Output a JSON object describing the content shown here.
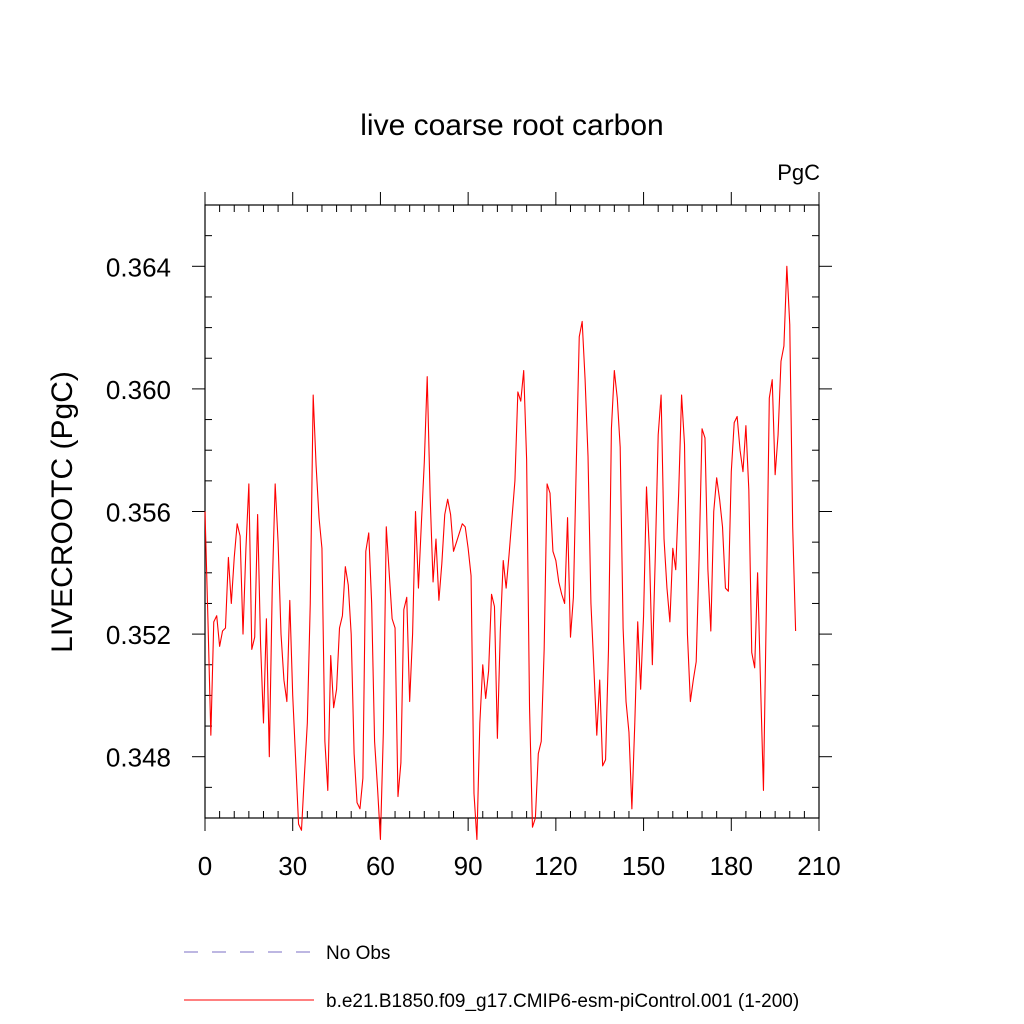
{
  "chart_data": {
    "type": "line",
    "title": "live coarse root carbon",
    "units_label": "PgC",
    "ylabel": "LIVECROOTC  (PgC)",
    "xlabel": "",
    "xlim": [
      0,
      210
    ],
    "ylim": [
      0.346,
      0.366
    ],
    "x_ticks": [
      0,
      30,
      60,
      90,
      120,
      150,
      180,
      210
    ],
    "x_tick_labels": [
      "0",
      "30",
      "60",
      "90",
      "120",
      "150",
      "180",
      "210"
    ],
    "x_minor_step": 5,
    "y_ticks": [
      0.348,
      0.352,
      0.356,
      0.36,
      0.364
    ],
    "y_tick_labels": [
      "0.348",
      "0.352",
      "0.356",
      "0.360",
      "0.364"
    ],
    "y_minor_step": 0.001,
    "grid": false,
    "series": [
      {
        "name": "b.e21.B1850.f09_g17.CMIP6-esm-piControl.001 (1-200)",
        "color": "#ff0000",
        "style": "solid",
        "x_start": 0,
        "x_step": 1,
        "values": [
          0.356,
          0.3525,
          0.3487,
          0.3524,
          0.3526,
          0.3516,
          0.3521,
          0.3522,
          0.3545,
          0.353,
          0.3545,
          0.3556,
          0.3552,
          0.352,
          0.3548,
          0.3569,
          0.3515,
          0.3519,
          0.3559,
          0.3517,
          0.3491,
          0.3525,
          0.348,
          0.3535,
          0.3569,
          0.355,
          0.352,
          0.3505,
          0.3498,
          0.3531,
          0.35,
          0.3479,
          0.3458,
          0.3456,
          0.3474,
          0.3491,
          0.353,
          0.3598,
          0.3575,
          0.3558,
          0.3548,
          0.3485,
          0.3469,
          0.3513,
          0.3496,
          0.3502,
          0.3522,
          0.3526,
          0.3542,
          0.3536,
          0.352,
          0.3481,
          0.3465,
          0.3463,
          0.3473,
          0.3547,
          0.3553,
          0.353,
          0.3485,
          0.347,
          0.3453,
          0.3488,
          0.3555,
          0.354,
          0.3525,
          0.3522,
          0.3467,
          0.3478,
          0.3528,
          0.3532,
          0.3498,
          0.352,
          0.356,
          0.3535,
          0.3556,
          0.3576,
          0.3604,
          0.3565,
          0.3537,
          0.3551,
          0.3531,
          0.3543,
          0.3559,
          0.3564,
          0.3559,
          0.3547,
          0.355,
          0.3553,
          0.3556,
          0.3555,
          0.3548,
          0.3539,
          0.3468,
          0.3453,
          0.3491,
          0.351,
          0.3499,
          0.3508,
          0.3533,
          0.3529,
          0.3486,
          0.3521,
          0.3544,
          0.3535,
          0.3546,
          0.3558,
          0.357,
          0.3599,
          0.3596,
          0.3606,
          0.3577,
          0.3496,
          0.3457,
          0.346,
          0.3481,
          0.3485,
          0.3515,
          0.3569,
          0.3566,
          0.3547,
          0.3544,
          0.3537,
          0.3533,
          0.353,
          0.3558,
          0.3519,
          0.3532,
          0.3576,
          0.3617,
          0.3622,
          0.3603,
          0.3578,
          0.353,
          0.3509,
          0.3487,
          0.3505,
          0.3477,
          0.3479,
          0.3515,
          0.3587,
          0.3606,
          0.3597,
          0.3581,
          0.3522,
          0.3498,
          0.3488,
          0.3463,
          0.3491,
          0.3524,
          0.3502,
          0.3526,
          0.3568,
          0.3547,
          0.351,
          0.3545,
          0.3585,
          0.3598,
          0.3551,
          0.3535,
          0.3524,
          0.3548,
          0.3541,
          0.3566,
          0.3598,
          0.3582,
          0.352,
          0.3498,
          0.3505,
          0.3511,
          0.3545,
          0.3587,
          0.3584,
          0.3541,
          0.3521,
          0.356,
          0.3571,
          0.3564,
          0.3555,
          0.3535,
          0.3534,
          0.3573,
          0.3589,
          0.3591,
          0.358,
          0.3573,
          0.3588,
          0.3567,
          0.3514,
          0.3509,
          0.354,
          0.3504,
          0.3469,
          0.3529,
          0.3597,
          0.3603,
          0.3572,
          0.3585,
          0.3609,
          0.3614,
          0.364,
          0.3621,
          0.3555,
          0.3521
        ]
      }
    ],
    "legend": {
      "placement": "bottom-left",
      "entries": [
        {
          "label": "No Obs",
          "color": "#7b6fc4",
          "style": "dashed"
        },
        {
          "label": "b.e21.B1850.f09_g17.CMIP6-esm-piControl.001 (1-200)",
          "color": "#ff0000",
          "style": "solid"
        }
      ]
    }
  }
}
